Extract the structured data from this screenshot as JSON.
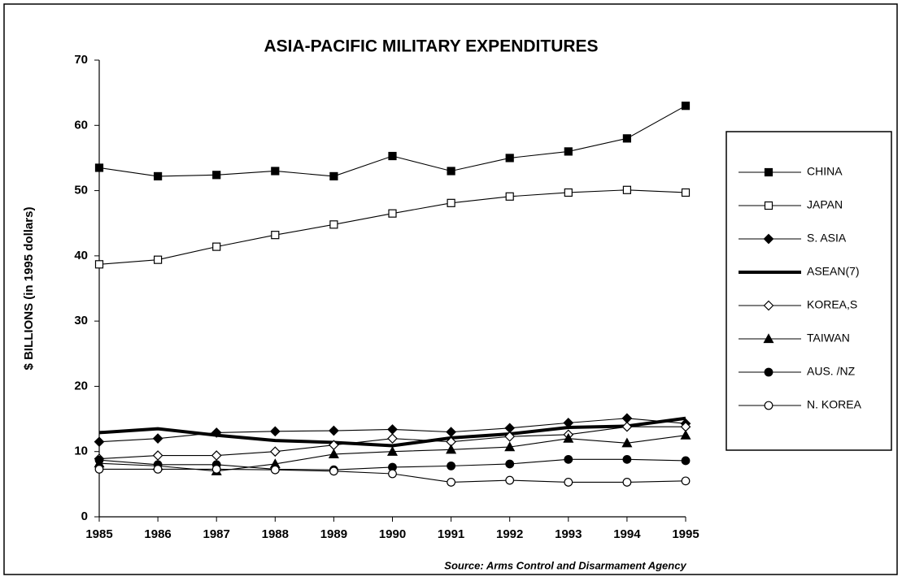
{
  "chart_data": {
    "type": "line",
    "title": "ASIA-PACIFIC MILITARY EXPENDITURES",
    "y_label": "$ BILLIONS (in 1995 dollars)",
    "source": "Source: Arms Control and Disarmament Agency",
    "x": [
      1985,
      1986,
      1987,
      1988,
      1989,
      1990,
      1991,
      1992,
      1993,
      1994,
      1995
    ],
    "xlim": [
      1985,
      1995
    ],
    "xticks": [
      1985,
      1986,
      1987,
      1988,
      1989,
      1990,
      1991,
      1992,
      1993,
      1994,
      1995
    ],
    "ylim": [
      0,
      70
    ],
    "yticks": [
      0,
      10,
      20,
      30,
      40,
      50,
      60,
      70
    ],
    "legend": "right",
    "series": [
      {
        "name": "CHINA",
        "color": "#000000",
        "marker": "square-filled",
        "values": [
          53.5,
          52.2,
          52.4,
          53,
          52.2,
          55.3,
          53,
          55,
          56,
          58,
          63
        ]
      },
      {
        "name": "JAPAN",
        "color": "#000000",
        "marker": "square-open",
        "values": [
          38.7,
          39.4,
          41.4,
          43.2,
          44.8,
          46.5,
          48.1,
          49.1,
          49.7,
          50.1,
          49.7
        ]
      },
      {
        "name": "S. ASIA",
        "color": "#000000",
        "marker": "diamond-filled",
        "values": [
          11.5,
          12,
          12.9,
          13.1,
          13.2,
          13.4,
          13,
          13.6,
          14.4,
          15.1,
          14.3
        ]
      },
      {
        "name": "ASEAN(7)",
        "color": "#000000",
        "marker": "none",
        "line_width": 4,
        "values": [
          12.9,
          13.5,
          12.5,
          11.7,
          11.4,
          10.9,
          12.1,
          12.7,
          13.7,
          13.9,
          15.1
        ]
      },
      {
        "name": "KOREA,S",
        "color": "#000000",
        "marker": "diamond-open",
        "values": [
          8.9,
          9.4,
          9.4,
          10,
          11,
          12,
          11.5,
          12.3,
          12.6,
          13.8,
          13.8
        ]
      },
      {
        "name": "TAIWAN",
        "color": "#000000",
        "marker": "triangle-filled",
        "values": [
          8.2,
          7.8,
          7,
          8.1,
          9.6,
          10,
          10.3,
          10.7,
          12,
          11.3,
          12.5
        ]
      },
      {
        "name": "AUS. /NZ",
        "color": "#000000",
        "marker": "circle-filled",
        "values": [
          8.7,
          8,
          8,
          7.3,
          7.2,
          7.6,
          7.8,
          8.1,
          8.8,
          8.8,
          8.6
        ]
      },
      {
        "name": "N. KOREA",
        "color": "#000000",
        "marker": "circle-open",
        "values": [
          7.3,
          7.3,
          7.3,
          7.2,
          7,
          6.6,
          5.3,
          5.6,
          5.3,
          5.3,
          5.5
        ]
      }
    ]
  }
}
